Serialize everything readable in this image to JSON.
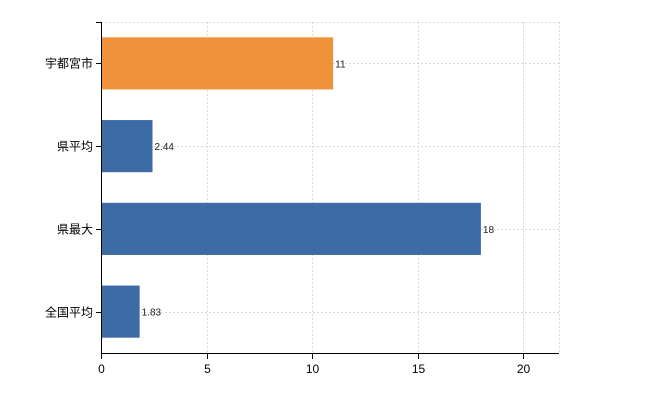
{
  "chart_data": {
    "type": "bar",
    "orientation": "horizontal",
    "categories": [
      "宇都宮市",
      "県平均",
      "県最大",
      "全国平均"
    ],
    "values": [
      11,
      2.44,
      18,
      1.83
    ],
    "value_labels": [
      "11",
      "2.44",
      "18",
      "1.83"
    ],
    "bar_colors": [
      "#f0923a",
      "#3c6ba5",
      "#3c6ba5",
      "#3c6ba5"
    ],
    "xlim": [
      0,
      21.7
    ],
    "xticks": [
      0,
      5,
      10,
      15,
      20
    ],
    "xtick_labels": [
      "0",
      "5",
      "10",
      "15",
      "20"
    ],
    "grid": true,
    "title": "",
    "xlabel": "",
    "ylabel": ""
  }
}
